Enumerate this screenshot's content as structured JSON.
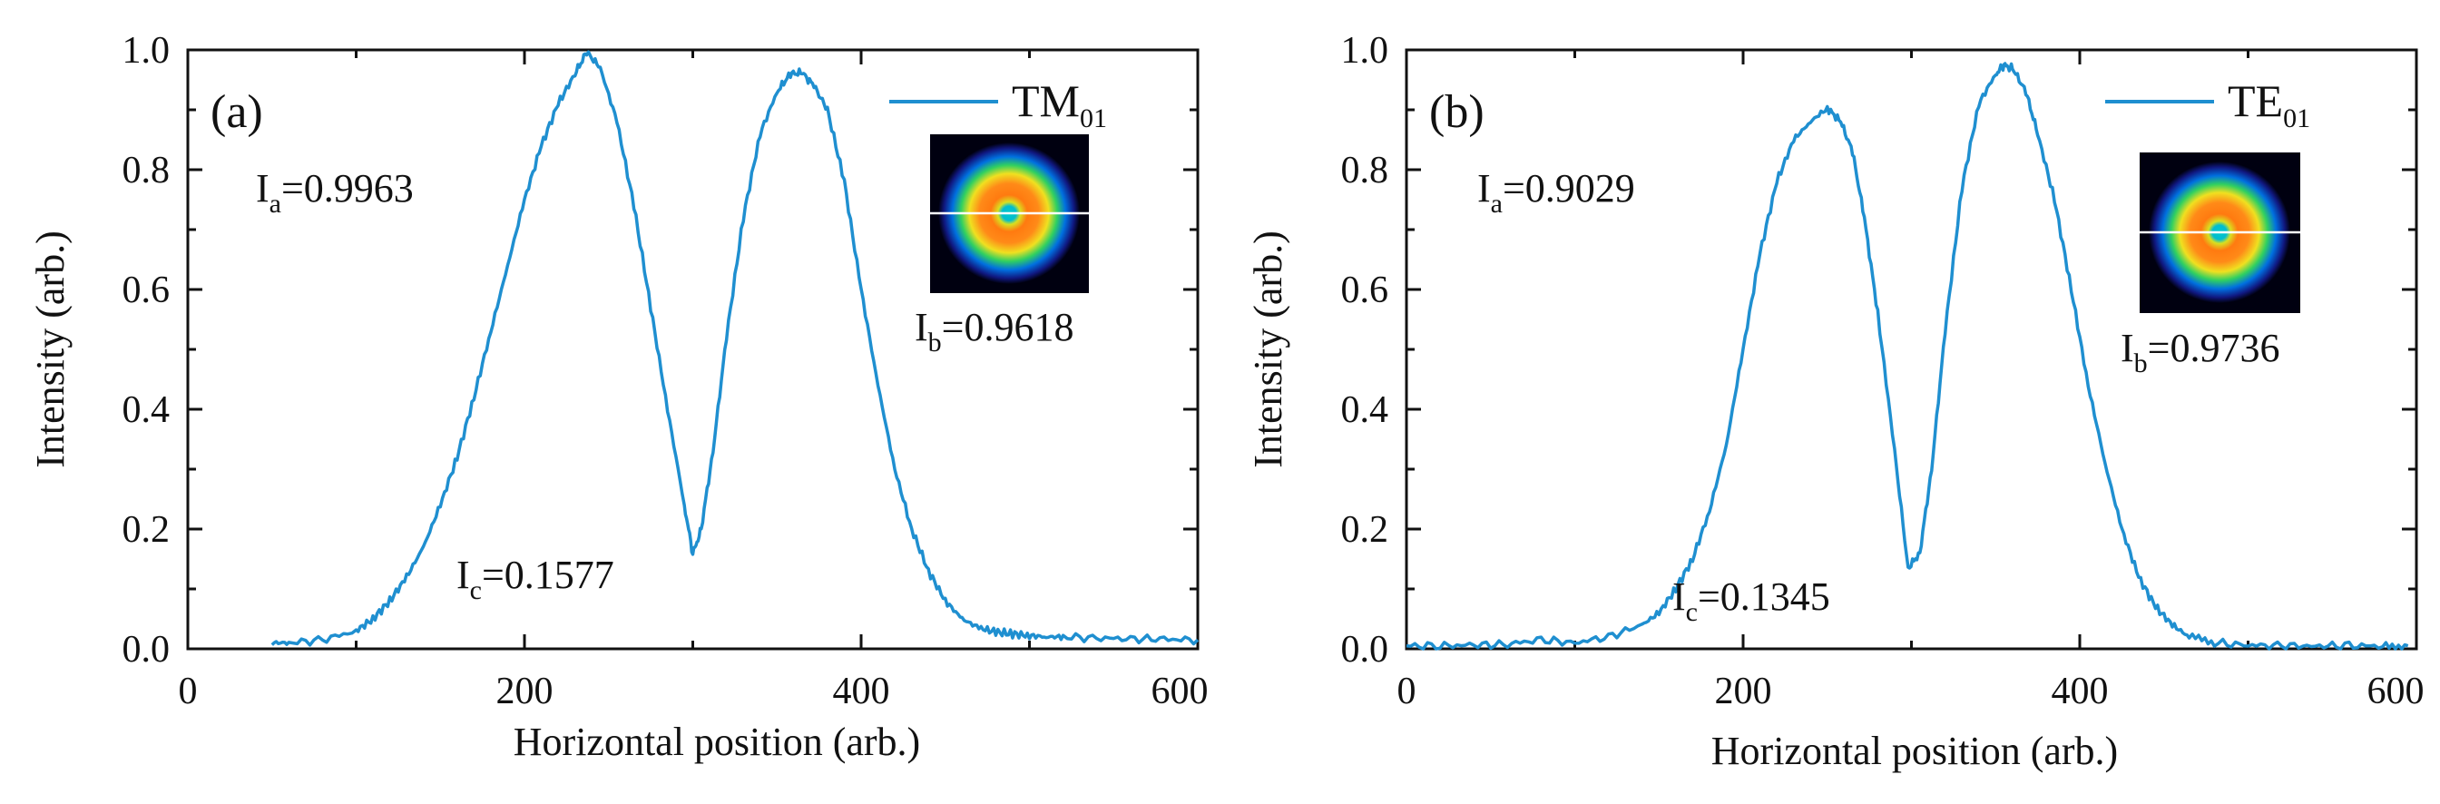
{
  "chart_data": [
    {
      "type": "line",
      "panel_label": "(a)",
      "legend": {
        "base": "TM",
        "sub": "01",
        "placement": "top-right"
      },
      "xlabel": "Horizontal position (arb.)",
      "ylabel": "Intensity (arb.)",
      "xlim": [
        0,
        600
      ],
      "ylim": [
        0,
        1.0
      ],
      "xticks": [
        "0",
        "200",
        "400",
        "600"
      ],
      "yticks": [
        "0.0",
        "0.2",
        "0.4",
        "0.6",
        "0.8",
        "1.0"
      ],
      "annotations": [
        {
          "base": "I",
          "sub": "a",
          "value": "=0.9963"
        },
        {
          "base": "I",
          "sub": "b",
          "value": "=0.9618"
        },
        {
          "base": "I",
          "sub": "c",
          "value": "=0.1577"
        }
      ],
      "series": [
        {
          "name": "TM01",
          "color": "#1f8fd0",
          "x": [
            50,
            60,
            80,
            100,
            110,
            120,
            130,
            140,
            150,
            160,
            170,
            180,
            190,
            200,
            210,
            220,
            230,
            237,
            245,
            255,
            265,
            275,
            285,
            295,
            300,
            305,
            312,
            320,
            330,
            340,
            350,
            358,
            365,
            372,
            380,
            390,
            400,
            410,
            420,
            430,
            440,
            450,
            460,
            470,
            480,
            490,
            500,
            510,
            520,
            540,
            560,
            580,
            600
          ],
          "y": [
            0.01,
            0.01,
            0.015,
            0.03,
            0.05,
            0.08,
            0.12,
            0.17,
            0.24,
            0.32,
            0.42,
            0.53,
            0.64,
            0.75,
            0.84,
            0.91,
            0.96,
            0.9963,
            0.97,
            0.88,
            0.74,
            0.57,
            0.4,
            0.24,
            0.1577,
            0.2,
            0.33,
            0.52,
            0.72,
            0.86,
            0.93,
            0.96,
            0.9618,
            0.94,
            0.9,
            0.78,
            0.6,
            0.44,
            0.3,
            0.2,
            0.13,
            0.08,
            0.05,
            0.035,
            0.028,
            0.025,
            0.022,
            0.02,
            0.02,
            0.018,
            0.017,
            0.016,
            0.015
          ]
        }
      ]
    },
    {
      "type": "line",
      "panel_label": "(b)",
      "legend": {
        "base": "TE",
        "sub": "01",
        "placement": "top-right"
      },
      "xlabel": "Horizontal position (arb.)",
      "ylabel": "Intensity (arb.)",
      "xlim": [
        0,
        600
      ],
      "ylim": [
        0,
        1.0
      ],
      "xticks": [
        "0",
        "200",
        "400",
        "600"
      ],
      "yticks": [
        "0.0",
        "0.2",
        "0.4",
        "0.6",
        "0.8",
        "1.0"
      ],
      "annotations": [
        {
          "base": "I",
          "sub": "a",
          "value": "=0.9029"
        },
        {
          "base": "I",
          "sub": "b",
          "value": "=0.9736"
        },
        {
          "base": "I",
          "sub": "c",
          "value": "=0.1345"
        }
      ],
      "series": [
        {
          "name": "TE01",
          "color": "#1f8fd0",
          "x": [
            0,
            20,
            40,
            60,
            80,
            100,
            120,
            140,
            150,
            160,
            170,
            180,
            190,
            200,
            210,
            220,
            230,
            240,
            250,
            258,
            265,
            272,
            280,
            290,
            298,
            305,
            312,
            320,
            330,
            340,
            350,
            355,
            360,
            368,
            375,
            385,
            395,
            405,
            415,
            425,
            435,
            445,
            455,
            465,
            480,
            500,
            520,
            540,
            560,
            580,
            595
          ],
          "y": [
            0.005,
            0.005,
            0.006,
            0.008,
            0.015,
            0.01,
            0.02,
            0.04,
            0.06,
            0.1,
            0.15,
            0.23,
            0.34,
            0.5,
            0.66,
            0.78,
            0.85,
            0.88,
            0.9029,
            0.88,
            0.83,
            0.72,
            0.56,
            0.33,
            0.1345,
            0.16,
            0.3,
            0.53,
            0.77,
            0.91,
            0.96,
            0.9736,
            0.97,
            0.93,
            0.86,
            0.75,
            0.6,
            0.44,
            0.31,
            0.2,
            0.12,
            0.07,
            0.04,
            0.02,
            0.01,
            0.006,
            0.005,
            0.005,
            0.005,
            0.005,
            0.005
          ]
        }
      ]
    }
  ]
}
